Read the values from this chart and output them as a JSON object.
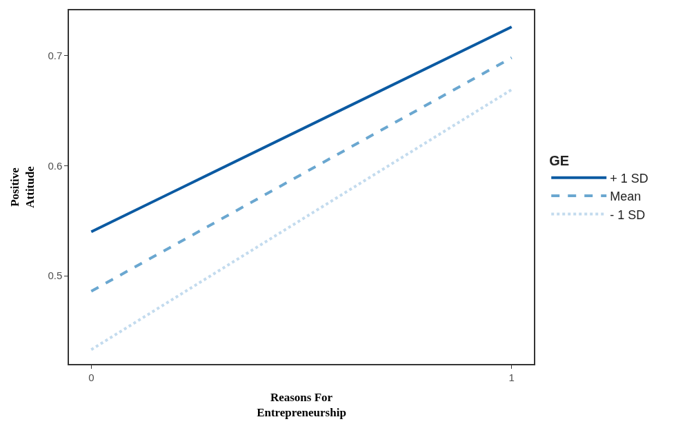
{
  "chart_data": {
    "type": "line",
    "xlabel": "Reasons For\nEntrepreneurship",
    "ylabel": "Positive\nAttitude",
    "legend_title": "GE",
    "x": [
      0,
      1
    ],
    "series": [
      {
        "name": "+ 1 SD",
        "color": "#0b5aa2",
        "line_style": "solid",
        "values": [
          0.54,
          0.726
        ]
      },
      {
        "name": "Mean",
        "color": "#6aa7d0",
        "line_style": "dashed",
        "values": [
          0.486,
          0.698
        ]
      },
      {
        "name": "- 1 SD",
        "color": "#c3dbee",
        "line_style": "dotted",
        "values": [
          0.433,
          0.669
        ]
      }
    ],
    "xlim": [
      -0.053,
      1.053
    ],
    "xticks": [
      0,
      1
    ],
    "ylim": [
      0.42,
      0.741
    ],
    "yticks": [
      0.5,
      0.6,
      0.7
    ],
    "legend": "right",
    "marker": "none"
  }
}
